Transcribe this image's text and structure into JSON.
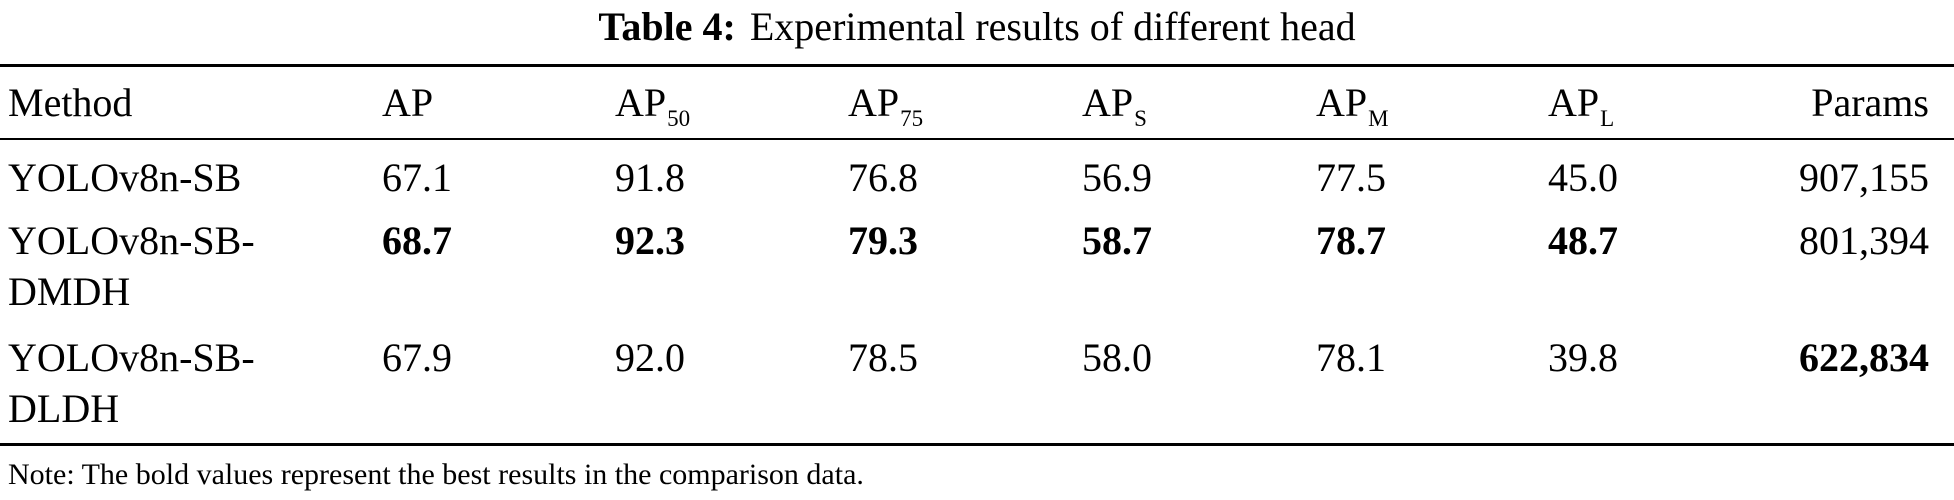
{
  "caption": {
    "label": "Table 4:",
    "text": "Experimental results of different head"
  },
  "table": {
    "headers": [
      {
        "main": "Method",
        "sub": ""
      },
      {
        "main": "AP",
        "sub": ""
      },
      {
        "main": "AP",
        "sub": "50"
      },
      {
        "main": "AP",
        "sub": "75"
      },
      {
        "main": "AP",
        "sub": "S"
      },
      {
        "main": "AP",
        "sub": "M"
      },
      {
        "main": "AP",
        "sub": "L"
      },
      {
        "main": "Params",
        "sub": ""
      }
    ],
    "rows": [
      {
        "method_line1": "YOLOv8n-SB",
        "method_line2": "",
        "cells": [
          "67.1",
          "91.8",
          "76.8",
          "56.9",
          "77.5",
          "45.0",
          "907,155"
        ],
        "bold": [
          false,
          false,
          false,
          false,
          false,
          false,
          false
        ]
      },
      {
        "method_line1": "YOLOv8n-SB-",
        "method_line2": "DMDH",
        "cells": [
          "68.7",
          "92.3",
          "79.3",
          "58.7",
          "78.7",
          "48.7",
          "801,394"
        ],
        "bold": [
          true,
          true,
          true,
          true,
          true,
          true,
          false
        ]
      },
      {
        "method_line1": "YOLOv8n-SB-",
        "method_line2": "DLDH",
        "cells": [
          "67.9",
          "92.0",
          "78.5",
          "58.0",
          "78.1",
          "39.8",
          "622,834"
        ],
        "bold": [
          false,
          false,
          false,
          false,
          false,
          false,
          true
        ]
      }
    ]
  },
  "note": "Note: The bold values represent the best results in the comparison data."
}
